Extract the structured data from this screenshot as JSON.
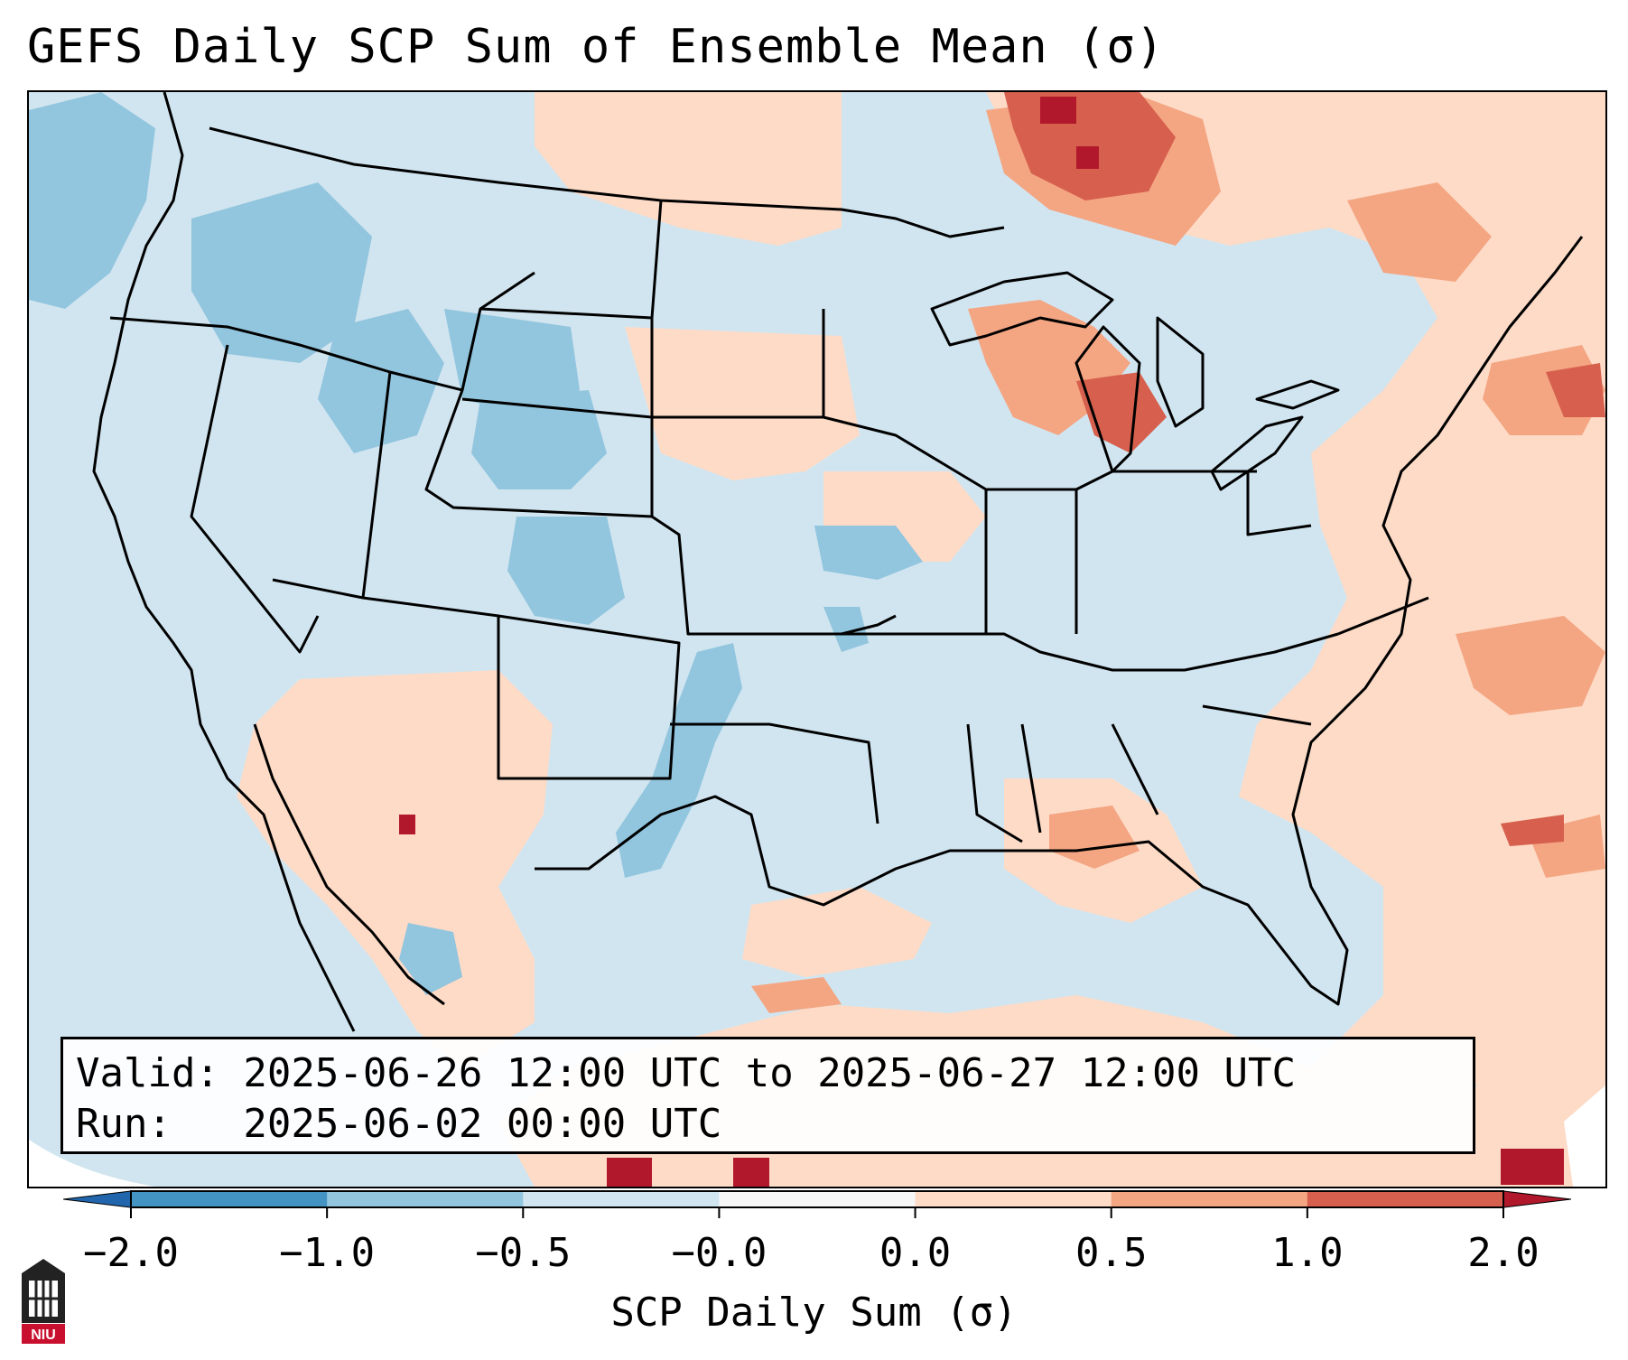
{
  "title": "GEFS Daily SCP Sum of Ensemble Mean (σ)",
  "info": {
    "valid_line": "Valid: 2025-06-26 12:00 UTC to 2025-06-27 12:00 UTC",
    "run_line": "Run:   2025-06-02 00:00 UTC"
  },
  "colorbar": {
    "label": "SCP Daily Sum (σ)",
    "ticks": [
      "−2.0",
      "−1.0",
      "−0.5",
      "−0.0",
      "0.0",
      "0.5",
      "1.0",
      "2.0"
    ],
    "colors": [
      "#2166ac",
      "#4393c3",
      "#92c5de",
      "#d1e5f0",
      "#f7f7f7",
      "#fddbc7",
      "#f4a582",
      "#d6604d",
      "#b2182b"
    ]
  },
  "logo": {
    "text": "NIU"
  }
}
